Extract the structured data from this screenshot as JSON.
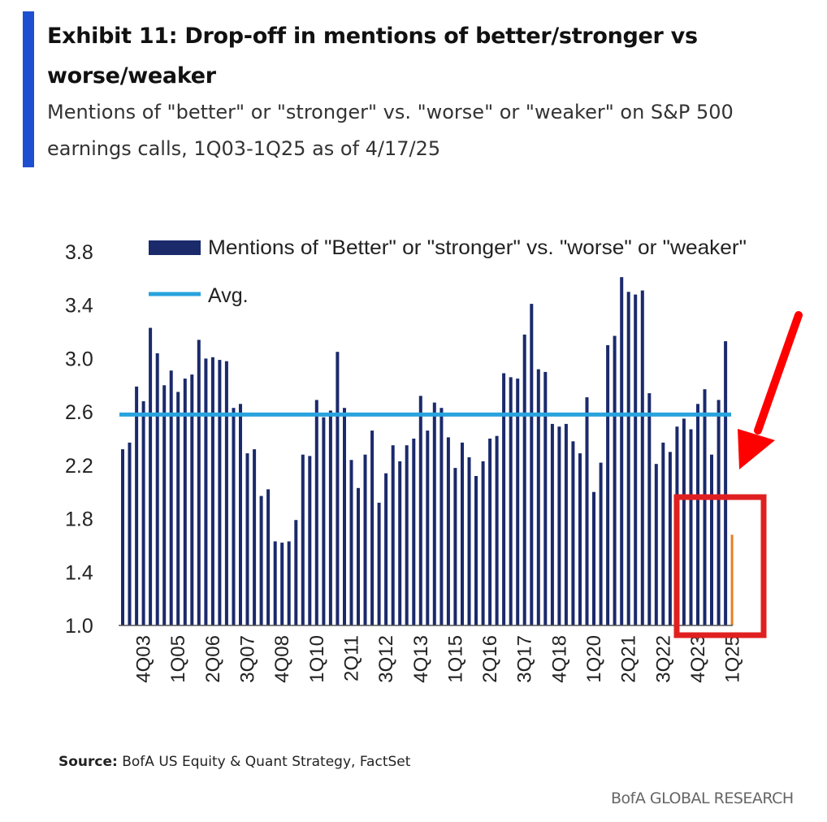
{
  "header": {
    "title": "Exhibit 11: Drop-off in mentions of better/stronger vs worse/weaker",
    "subtitle": "Mentions of \"better\" or \"stronger\" vs. \"worse\" or \"weaker\" on S&P 500 earnings calls, 1Q03-1Q25 as of 4/17/25"
  },
  "footer": {
    "source_label": "Source:",
    "source_text": "BofA US Equity & Quant Strategy, FactSet",
    "brand": "BofA GLOBAL RESEARCH"
  },
  "colors": {
    "bars": "#1b2a6b",
    "avg_line": "#29a3dd",
    "last_bar": "#e67e22",
    "highlight_box": "#e02020",
    "arrow": "#ff0000",
    "accent": "#1f4fd1"
  },
  "chart_data": {
    "type": "bar",
    "title": "",
    "xlabel": "",
    "ylabel": "",
    "ylim": [
      1.0,
      3.8
    ],
    "yticks": [
      "3.8",
      "3.4",
      "3.0",
      "2.6",
      "2.2",
      "1.8",
      "1.4",
      "1.0"
    ],
    "xtick_labels": [
      "4Q03",
      "1Q05",
      "2Q06",
      "3Q07",
      "4Q08",
      "1Q10",
      "2Q11",
      "3Q12",
      "4Q13",
      "1Q15",
      "2Q16",
      "3Q17",
      "4Q18",
      "1Q20",
      "2Q21",
      "3Q22",
      "4Q23",
      "1Q25"
    ],
    "legend": [
      {
        "name": "Mentions of \"Better\" or \"stronger\" vs. \"worse\" or \"weaker\"",
        "kind": "bar"
      },
      {
        "name": "Avg.",
        "kind": "line"
      }
    ],
    "legend_position": "top",
    "grid": false,
    "categories": [
      "1Q03",
      "2Q03",
      "3Q03",
      "4Q03",
      "1Q04",
      "2Q04",
      "3Q04",
      "4Q04",
      "1Q05",
      "2Q05",
      "3Q05",
      "4Q05",
      "1Q06",
      "2Q06",
      "3Q06",
      "4Q06",
      "1Q07",
      "2Q07",
      "3Q07",
      "4Q07",
      "1Q08",
      "2Q08",
      "3Q08",
      "4Q08",
      "1Q09",
      "2Q09",
      "3Q09",
      "4Q09",
      "1Q10",
      "2Q10",
      "3Q10",
      "4Q10",
      "1Q11",
      "2Q11",
      "3Q11",
      "4Q11",
      "1Q12",
      "2Q12",
      "3Q12",
      "4Q12",
      "1Q13",
      "2Q13",
      "3Q13",
      "4Q13",
      "1Q14",
      "2Q14",
      "3Q14",
      "4Q14",
      "1Q15",
      "2Q15",
      "3Q15",
      "4Q15",
      "1Q16",
      "2Q16",
      "3Q16",
      "4Q16",
      "1Q17",
      "2Q17",
      "3Q17",
      "4Q17",
      "1Q18",
      "2Q18",
      "3Q18",
      "4Q18",
      "1Q19",
      "2Q19",
      "3Q19",
      "4Q19",
      "1Q20",
      "2Q20",
      "3Q20",
      "4Q20",
      "1Q21",
      "2Q21",
      "3Q21",
      "4Q21",
      "1Q22",
      "2Q22",
      "3Q22",
      "4Q22",
      "1Q23",
      "2Q23",
      "3Q23",
      "4Q23",
      "1Q24",
      "2Q24",
      "3Q24",
      "4Q24",
      "1Q25"
    ],
    "series": [
      {
        "name": "Mentions of \"Better\" or \"stronger\" vs. \"worse\" or \"weaker\"",
        "values": [
          2.32,
          2.37,
          2.79,
          2.68,
          3.23,
          3.04,
          2.8,
          2.91,
          2.75,
          2.85,
          2.88,
          3.14,
          3.0,
          3.01,
          2.99,
          2.98,
          2.63,
          2.66,
          2.29,
          2.32,
          1.97,
          2.02,
          1.63,
          1.62,
          1.63,
          1.79,
          2.28,
          2.27,
          2.69,
          2.56,
          2.61,
          3.05,
          2.63,
          2.24,
          2.03,
          2.28,
          2.46,
          1.92,
          2.14,
          2.35,
          2.23,
          2.35,
          2.4,
          2.72,
          2.46,
          2.67,
          2.63,
          2.41,
          2.18,
          2.37,
          2.26,
          2.12,
          2.23,
          2.4,
          2.42,
          2.89,
          2.86,
          2.85,
          3.18,
          3.41,
          2.92,
          2.9,
          2.51,
          2.49,
          2.51,
          2.38,
          2.29,
          2.71,
          2.0,
          2.22,
          3.1,
          3.17,
          3.61,
          3.5,
          3.48,
          3.51,
          2.74,
          2.21,
          2.37,
          2.3,
          2.49,
          2.55,
          2.47,
          2.66,
          2.77,
          2.28,
          2.69,
          3.13,
          1.68
        ]
      }
    ],
    "average": 2.58,
    "highlight_last": true
  }
}
